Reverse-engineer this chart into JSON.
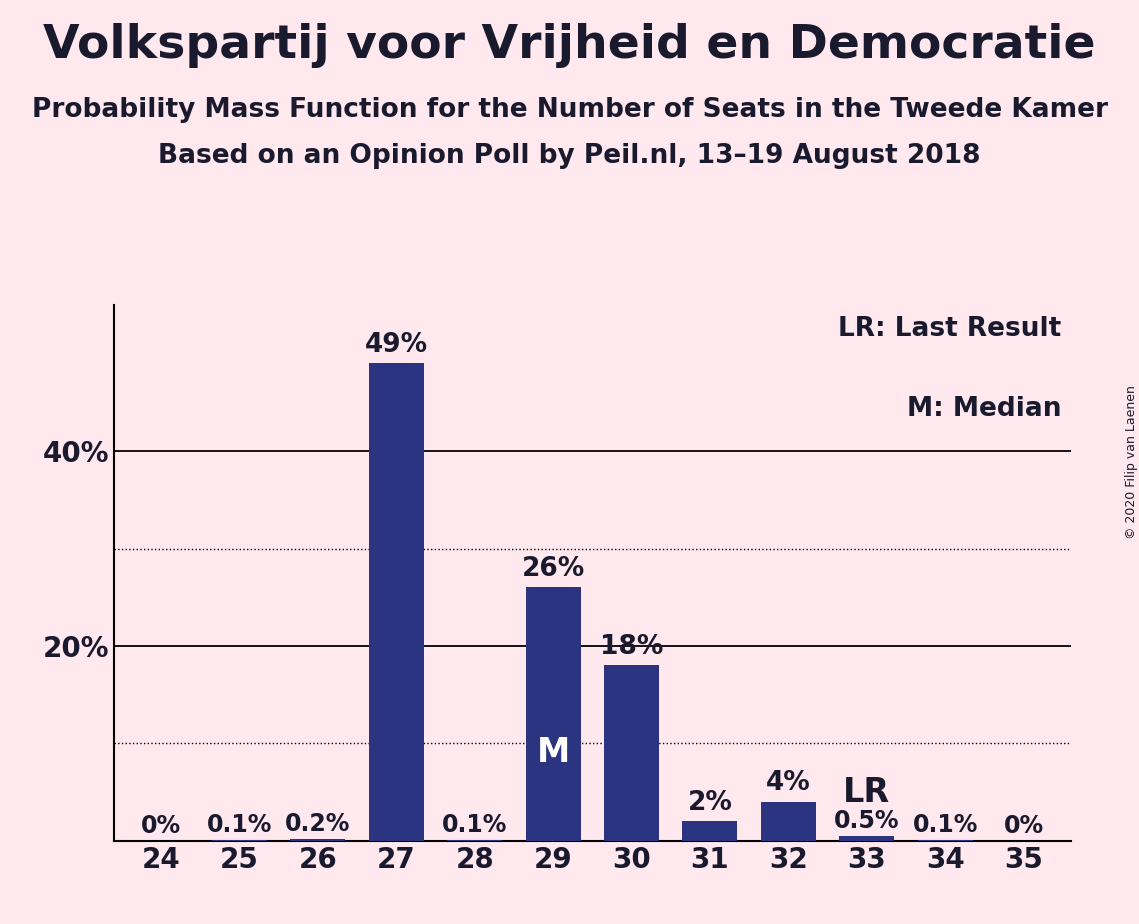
{
  "title": "Volkspartij voor Vrijheid en Democratie",
  "subtitle1": "Probability Mass Function for the Number of Seats in the Tweede Kamer",
  "subtitle2": "Based on an Opinion Poll by Peil.nl, 13–19 August 2018",
  "copyright": "© 2020 Filip van Laenen",
  "seats": [
    24,
    25,
    26,
    27,
    28,
    29,
    30,
    31,
    32,
    33,
    34,
    35
  ],
  "probabilities": [
    0.0,
    0.1,
    0.2,
    49.0,
    0.1,
    26.0,
    18.0,
    2.0,
    4.0,
    0.5,
    0.1,
    0.0
  ],
  "bar_labels": [
    "0%",
    "0.1%",
    "0.2%",
    "49%",
    "0.1%",
    "26%",
    "18%",
    "2%",
    "4%",
    "0.5%",
    "0.1%",
    "0%"
  ],
  "bar_color": "#2B3480",
  "background_color": "#FFE8EE",
  "median_seat": 29,
  "lr_seat": 33,
  "solid_gridlines": [
    20,
    40
  ],
  "dotted_gridlines": [
    10,
    30
  ],
  "ylim": [
    0,
    55
  ],
  "title_fontsize": 34,
  "subtitle1_fontsize": 19,
  "subtitle2_fontsize": 19,
  "tick_fontsize": 20,
  "bar_label_fontsize_large": 19,
  "bar_label_fontsize_small": 17,
  "annotation_fontsize": 24,
  "legend_fontsize": 19,
  "copyright_fontsize": 9,
  "text_color": "#1a1a2e"
}
